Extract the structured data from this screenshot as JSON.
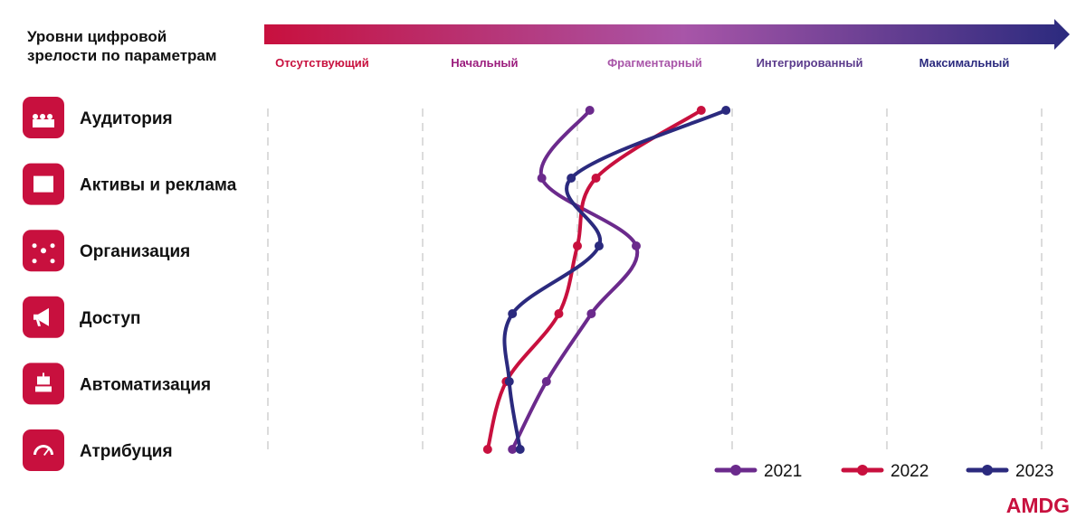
{
  "header": {
    "title_line1": "Уровни цифровой",
    "title_line2": "зрелости по параметрам"
  },
  "logo": {
    "text": "AMDG",
    "color": "#c8103e"
  },
  "colors": {
    "icon_bg": "#c8103e",
    "arrow_start": "#c8103e",
    "arrow_mid": "#a855a8",
    "arrow_end": "#2b2a7e"
  },
  "chart_data": {
    "type": "line",
    "x_levels": [
      "Отсутствующий",
      "Начальный",
      "Фрагментарный",
      "Интегрированный",
      "Максимальный"
    ],
    "level_colors": [
      "#c8103e",
      "#9b1d7d",
      "#a855a8",
      "#5b3b8c",
      "#2b2a7e"
    ],
    "categories": [
      {
        "label": "Аудитория",
        "icon": "people-icon"
      },
      {
        "label": "Активы и реклама",
        "icon": "blueprint-icon"
      },
      {
        "label": "Организация",
        "icon": "network-icon"
      },
      {
        "label": "Доступ",
        "icon": "megaphone-icon"
      },
      {
        "label": "Автоматизация",
        "icon": "robot-icon"
      },
      {
        "label": "Атрибуция",
        "icon": "gauge-icon"
      }
    ],
    "xlim": [
      0,
      5
    ],
    "grid": "vertical dashed",
    "legend_position": "bottom-right",
    "series": [
      {
        "name": "2021",
        "color": "#6b2a8c",
        "values": [
          2.08,
          1.77,
          2.38,
          2.09,
          1.8,
          1.58
        ]
      },
      {
        "name": "2022",
        "color": "#c8103e",
        "values": [
          2.8,
          2.12,
          2.0,
          1.88,
          1.54,
          1.42
        ]
      },
      {
        "name": "2023",
        "color": "#2b2a7e",
        "values": [
          2.96,
          1.96,
          2.14,
          1.58,
          1.56,
          1.63
        ]
      }
    ]
  }
}
